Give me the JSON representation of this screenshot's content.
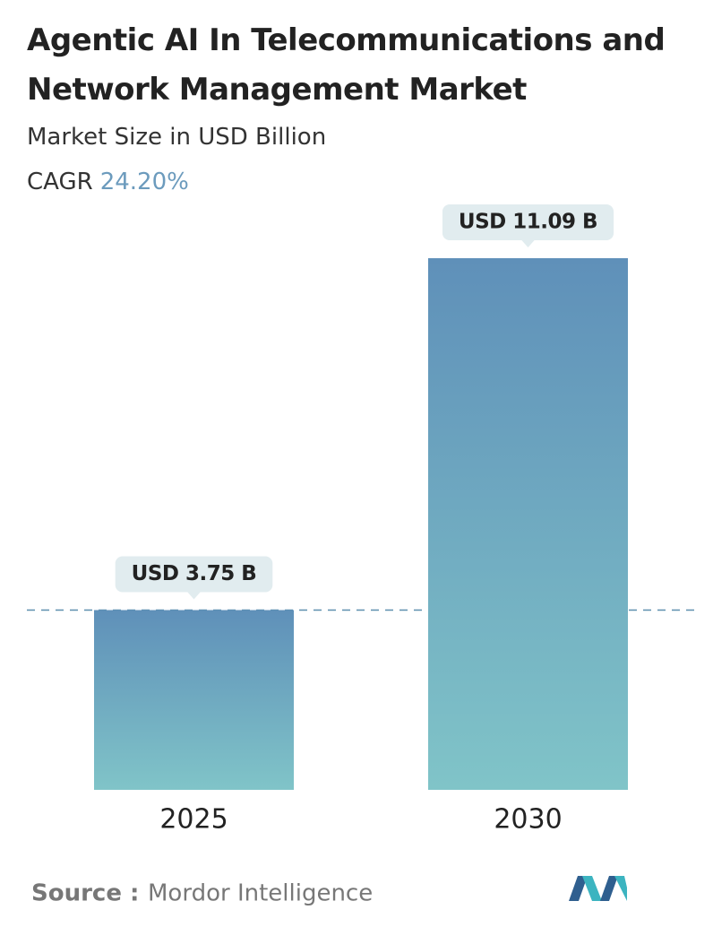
{
  "chart_data": {
    "type": "bar",
    "title": "Agentic AI In Telecommunications and Network Management Market",
    "subtitle": "Market Size in USD Billion",
    "cagr_label": "CAGR",
    "cagr_value": "24.20%",
    "categories": [
      "2025",
      "2030"
    ],
    "values": [
      3.75,
      11.09
    ],
    "value_labels": [
      "USD 3.75 B",
      "USD 11.09 B"
    ],
    "color": "#6a9fbf",
    "source_label": "Source :",
    "source": "Mordor Intelligence"
  }
}
